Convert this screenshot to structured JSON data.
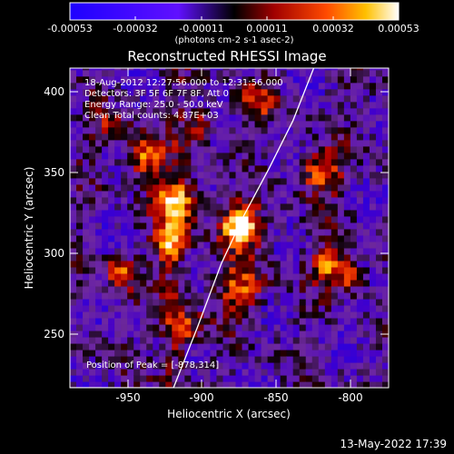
{
  "colorbar": {
    "tick_labels": [
      "-0.00053",
      "-0.00032",
      "-0.00011",
      "0.00011",
      "0.00032",
      "0.00053"
    ],
    "units": "(photons cm-2 s-1 asec-2)"
  },
  "plot": {
    "title": "Reconstructed RHESSI Image",
    "info_lines": [
      "18-Aug-2012 12:27:56.000 to 12:31:56.000",
      "Detectors: 3F 5F 6F 7F 8F, Att 0",
      "Energy Range: 25.0 - 50.0 keV",
      "Clean    Total counts: 4.87E+03"
    ],
    "peak_text": "Position of Peak = [-878,314]",
    "xlabel": "Heliocentric X (arcsec)",
    "ylabel": "Heliocentric Y (arcsec)",
    "x_ticks": [
      "-950",
      "-900",
      "-850",
      "-800"
    ],
    "y_ticks": [
      "250",
      "300",
      "350",
      "400"
    ]
  },
  "footer": {
    "timestamp": "13-May-2022 17:39"
  },
  "chart_data": {
    "type": "heatmap",
    "title": "Reconstructed RHESSI Image",
    "xlabel": "Heliocentric X (arcsec)",
    "ylabel": "Heliocentric Y (arcsec)",
    "xlim": [
      -985,
      -785
    ],
    "ylim": [
      212,
      413
    ],
    "colorbar_range": [
      -0.00053,
      0.00053
    ],
    "peak": [
      -878,
      314
    ],
    "sources": [
      {
        "x": -878,
        "y": 314,
        "sigma": 9,
        "amp": 1.0
      },
      {
        "x": -918,
        "y": 329,
        "sigma": 9,
        "amp": 0.82
      },
      {
        "x": -923,
        "y": 303,
        "sigma": 7,
        "amp": 0.55
      },
      {
        "x": -938,
        "y": 358,
        "sigma": 8,
        "amp": 0.72
      },
      {
        "x": -953,
        "y": 285,
        "sigma": 7,
        "amp": 0.55
      },
      {
        "x": -822,
        "y": 290,
        "sigma": 7,
        "amp": 0.7
      },
      {
        "x": -827,
        "y": 348,
        "sigma": 9,
        "amp": 0.62
      },
      {
        "x": -808,
        "y": 282,
        "sigma": 6,
        "amp": 0.58
      },
      {
        "x": -878,
        "y": 275,
        "sigma": 10,
        "amp": 0.55
      },
      {
        "x": -868,
        "y": 392,
        "sigma": 8,
        "amp": 0.4
      },
      {
        "x": -913,
        "y": 250,
        "sigma": 8,
        "amp": 0.45
      },
      {
        "x": -960,
        "y": 375,
        "sigma": 7,
        "amp": 0.4
      },
      {
        "x": -903,
        "y": 378,
        "sigma": 7,
        "amp": 0.38
      }
    ],
    "limb_curve": [
      [
        -985,
        212
      ],
      [
        -920,
        212
      ],
      [
        -905,
        250
      ],
      [
        -890,
        290
      ],
      [
        -876,
        320
      ],
      [
        -860,
        350
      ],
      [
        -845,
        380
      ],
      [
        -832,
        413
      ]
    ]
  }
}
